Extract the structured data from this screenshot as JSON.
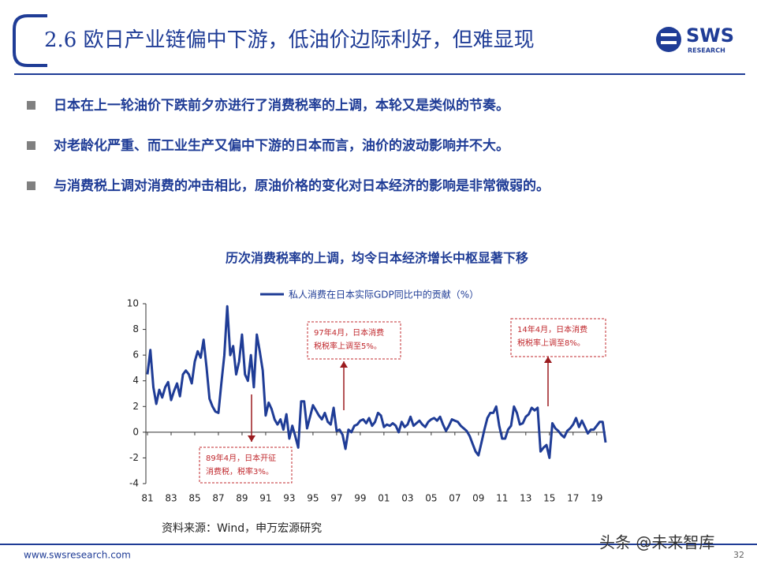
{
  "header": {
    "title": "2.6 欧日产业链偏中下游，低油价边际利好，但难显现",
    "logo": "SWS",
    "logo_sub": "RESEARCH"
  },
  "bullets": [
    "日本在上一轮油价下跌前夕亦进行了消费税率的上调，本轮又是类似的节奏。",
    "对老龄化严重、而工业生产又偏中下游的日本而言，油价的波动影响并不大。",
    "与消费税上调对消费的冲击相比，原油价格的变化对日本经济的影响是非常微弱的。"
  ],
  "chart_data": {
    "type": "line",
    "title": "历次消费税率的上调，均令日本经济增长中枢显著下移",
    "x": [
      1981,
      1981.25,
      1981.5,
      1981.75,
      1982,
      1982.25,
      1982.5,
      1982.75,
      1983,
      1983.25,
      1983.5,
      1983.75,
      1984,
      1984.25,
      1984.5,
      1984.75,
      1985,
      1985.25,
      1985.5,
      1985.75,
      1986,
      1986.25,
      1986.5,
      1986.75,
      1987,
      1987.25,
      1987.5,
      1987.75,
      1988,
      1988.25,
      1988.5,
      1988.75,
      1989,
      1989.25,
      1989.5,
      1989.75,
      1990,
      1990.25,
      1990.5,
      1990.75,
      1991,
      1991.25,
      1991.5,
      1991.75,
      1992,
      1992.25,
      1992.5,
      1992.75,
      1993,
      1993.25,
      1993.5,
      1993.75,
      1994,
      1994.25,
      1994.5,
      1994.75,
      1995,
      1995.25,
      1995.5,
      1995.75,
      1996,
      1996.25,
      1996.5,
      1996.75,
      1997,
      1997.25,
      1997.5,
      1997.75,
      1998,
      1998.25,
      1998.5,
      1998.75,
      1999,
      1999.25,
      1999.5,
      1999.75,
      2000,
      2000.25,
      2000.5,
      2000.75,
      2001,
      2001.25,
      2001.5,
      2001.75,
      2002,
      2002.25,
      2002.5,
      2002.75,
      2003,
      2003.25,
      2003.5,
      2003.75,
      2004,
      2004.25,
      2004.5,
      2004.75,
      2005,
      2005.25,
      2005.5,
      2005.75,
      2006,
      2006.25,
      2006.5,
      2006.75,
      2007,
      2007.25,
      2007.5,
      2007.75,
      2008,
      2008.25,
      2008.5,
      2008.75,
      2009,
      2009.25,
      2009.5,
      2009.75,
      2010,
      2010.25,
      2010.5,
      2010.75,
      2011,
      2011.25,
      2011.5,
      2011.75,
      2012,
      2012.25,
      2012.5,
      2012.75,
      2013,
      2013.25,
      2013.5,
      2013.75,
      2014,
      2014.25,
      2014.5,
      2014.75,
      2015,
      2015.25,
      2015.5,
      2015.75,
      2016,
      2016.25,
      2016.5,
      2016.75,
      2017,
      2017.25,
      2017.5,
      2017.75,
      2018,
      2018.25,
      2018.5,
      2018.75,
      2019,
      2019.25,
      2019.5,
      2019.75
    ],
    "series": [
      {
        "name": "私人消费在日本实际GDP同比中的贡献（%）",
        "color": "#1f3c96",
        "values": [
          4.5,
          6.4,
          3.5,
          2.2,
          3.3,
          2.7,
          3.5,
          3.9,
          2.5,
          3.2,
          3.8,
          2.8,
          4.5,
          4.8,
          4.5,
          3.8,
          5.5,
          6.3,
          5.8,
          7.2,
          5.0,
          2.6,
          2.0,
          1.6,
          1.5,
          3.8,
          6.0,
          9.8,
          6.0,
          6.7,
          4.5,
          5.5,
          7.6,
          4.5,
          4.0,
          6.0,
          3.5,
          7.6,
          6.3,
          4.8,
          1.3,
          2.3,
          1.8,
          1.0,
          0.6,
          1.0,
          0.2,
          1.4,
          -0.5,
          0.5,
          -0.3,
          -1.2,
          2.4,
          2.4,
          0.3,
          1.2,
          2.1,
          1.7,
          1.3,
          1.0,
          1.5,
          0.8,
          0.6,
          1.9,
          0.1,
          0.2,
          -0.2,
          -1.3,
          0.2,
          0.0,
          0.5,
          0.6,
          0.9,
          1.0,
          0.7,
          1.1,
          0.5,
          0.8,
          1.5,
          1.3,
          0.4,
          0.6,
          0.5,
          0.7,
          0.5,
          0.0,
          0.8,
          0.4,
          0.6,
          1.2,
          0.5,
          0.7,
          0.9,
          0.6,
          0.4,
          0.8,
          1.0,
          1.1,
          0.9,
          1.2,
          0.6,
          0.1,
          0.5,
          1.0,
          0.9,
          0.8,
          0.5,
          0.3,
          0.1,
          -0.3,
          -0.9,
          -1.5,
          -1.8,
          -0.8,
          0.2,
          1.1,
          1.5,
          1.5,
          2.0,
          0.5,
          -0.5,
          -0.5,
          0.2,
          0.5,
          2.0,
          1.5,
          0.6,
          0.7,
          1.2,
          1.4,
          1.9,
          1.7,
          1.9,
          -1.5,
          -1.2,
          -1.0,
          -2.0,
          0.7,
          0.3,
          0.1,
          -0.2,
          -0.4,
          0.1,
          0.3,
          0.6,
          1.1,
          0.4,
          0.9,
          0.4,
          -0.1,
          0.2,
          0.2,
          0.5,
          0.8,
          0.8,
          -0.8
        ]
      }
    ],
    "xlim": [
      1981,
      2019.75
    ],
    "ylim": [
      -4,
      10
    ],
    "xticks": [
      {
        "value": 1981,
        "label": "81"
      },
      {
        "value": 1983,
        "label": "83"
      },
      {
        "value": 1985,
        "label": "85"
      },
      {
        "value": 1987,
        "label": "87"
      },
      {
        "value": 1989,
        "label": "89"
      },
      {
        "value": 1991,
        "label": "91"
      },
      {
        "value": 1993,
        "label": "93"
      },
      {
        "value": 1995,
        "label": "95"
      },
      {
        "value": 1997,
        "label": "97"
      },
      {
        "value": 1999,
        "label": "99"
      },
      {
        "value": 2001,
        "label": "01"
      },
      {
        "value": 2003,
        "label": "03"
      },
      {
        "value": 2005,
        "label": "05"
      },
      {
        "value": 2007,
        "label": "07"
      },
      {
        "value": 2009,
        "label": "09"
      },
      {
        "value": 2011,
        "label": "11"
      },
      {
        "value": 2013,
        "label": "13"
      },
      {
        "value": 2015,
        "label": "15"
      },
      {
        "value": 2017,
        "label": "17"
      },
      {
        "value": 2019,
        "label": "19"
      }
    ],
    "yticks": [
      -4,
      -2,
      0,
      2,
      4,
      6,
      8,
      10
    ],
    "annotations": [
      {
        "lines": [
          "89年4月，日本开征",
          "消费税，税率3%。"
        ]
      },
      {
        "lines": [
          "97年4月，日本消费",
          "税税率上调至5%。"
        ]
      },
      {
        "lines": [
          "14年4月，日本消费",
          "税税率上调至8%。"
        ]
      }
    ]
  },
  "source": "资料来源：Wind，申万宏源研究",
  "footer": {
    "url": "www.swsresearch.com",
    "page": "32"
  },
  "watermark": "头条 @未来智库"
}
